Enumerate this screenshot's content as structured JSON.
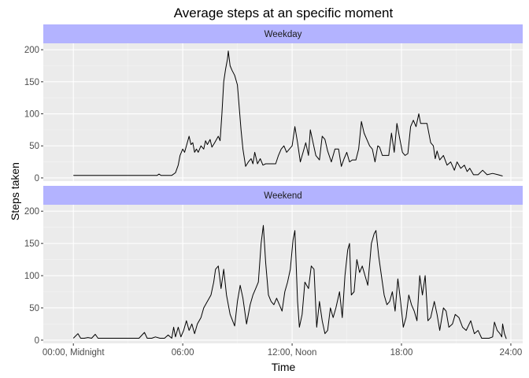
{
  "chart_data": {
    "type": "line",
    "title": "Average steps at an specific moment",
    "xlabel": "Time",
    "ylabel": "Steps taken",
    "x_unit": "hours",
    "xlim": [
      -1.65,
      24.65
    ],
    "x_ticks": [
      {
        "value": 0,
        "label": "00:00, Midnight"
      },
      {
        "value": 6,
        "label": "06:00"
      },
      {
        "value": 12,
        "label": "12:00, Noon"
      },
      {
        "value": 18,
        "label": "18:00"
      },
      {
        "value": 24,
        "label": "24:00"
      }
    ],
    "ylim": [
      -5,
      210
    ],
    "y_ticks": [
      0,
      50,
      100,
      150,
      200
    ],
    "grid": true,
    "panel_background": "#ebebeb",
    "strip_color": "#b3b3ff",
    "line_color": "#000000",
    "panels": [
      {
        "name": "Weekday",
        "points": [
          [
            0,
            4
          ],
          [
            1,
            4
          ],
          [
            2,
            4
          ],
          [
            3,
            4
          ],
          [
            3.6,
            4
          ],
          [
            4.2,
            4
          ],
          [
            4.6,
            4
          ],
          [
            4.7,
            6
          ],
          [
            4.8,
            4
          ],
          [
            5,
            4
          ],
          [
            5.4,
            4
          ],
          [
            5.6,
            8
          ],
          [
            5.75,
            20
          ],
          [
            5.85,
            35
          ],
          [
            6.0,
            45
          ],
          [
            6.1,
            40
          ],
          [
            6.25,
            55
          ],
          [
            6.35,
            65
          ],
          [
            6.45,
            52
          ],
          [
            6.55,
            55
          ],
          [
            6.65,
            40
          ],
          [
            6.75,
            45
          ],
          [
            6.85,
            40
          ],
          [
            7.0,
            50
          ],
          [
            7.15,
            45
          ],
          [
            7.25,
            58
          ],
          [
            7.35,
            52
          ],
          [
            7.5,
            60
          ],
          [
            7.6,
            48
          ],
          [
            7.75,
            55
          ],
          [
            7.85,
            60
          ],
          [
            7.95,
            65
          ],
          [
            8.05,
            58
          ],
          [
            8.15,
            100
          ],
          [
            8.25,
            150
          ],
          [
            8.35,
            170
          ],
          [
            8.45,
            185
          ],
          [
            8.5,
            198
          ],
          [
            8.6,
            175
          ],
          [
            8.7,
            168
          ],
          [
            8.85,
            160
          ],
          [
            9.0,
            145
          ],
          [
            9.1,
            110
          ],
          [
            9.2,
            75
          ],
          [
            9.3,
            45
          ],
          [
            9.45,
            18
          ],
          [
            9.6,
            25
          ],
          [
            9.75,
            30
          ],
          [
            9.85,
            22
          ],
          [
            9.95,
            40
          ],
          [
            10.1,
            22
          ],
          [
            10.25,
            30
          ],
          [
            10.4,
            20
          ],
          [
            10.55,
            22
          ],
          [
            10.8,
            22
          ],
          [
            11.1,
            22
          ],
          [
            11.25,
            35
          ],
          [
            11.4,
            45
          ],
          [
            11.55,
            50
          ],
          [
            11.7,
            40
          ],
          [
            11.85,
            45
          ],
          [
            12.0,
            50
          ],
          [
            12.15,
            80
          ],
          [
            12.3,
            55
          ],
          [
            12.45,
            25
          ],
          [
            12.6,
            40
          ],
          [
            12.75,
            55
          ],
          [
            12.9,
            35
          ],
          [
            13.0,
            75
          ],
          [
            13.15,
            55
          ],
          [
            13.3,
            35
          ],
          [
            13.5,
            28
          ],
          [
            13.65,
            65
          ],
          [
            13.8,
            60
          ],
          [
            13.95,
            42
          ],
          [
            14.15,
            25
          ],
          [
            14.35,
            45
          ],
          [
            14.55,
            45
          ],
          [
            14.7,
            18
          ],
          [
            14.85,
            30
          ],
          [
            15.0,
            40
          ],
          [
            15.15,
            25
          ],
          [
            15.3,
            28
          ],
          [
            15.5,
            28
          ],
          [
            15.65,
            45
          ],
          [
            15.8,
            88
          ],
          [
            15.95,
            70
          ],
          [
            16.1,
            60
          ],
          [
            16.25,
            50
          ],
          [
            16.4,
            45
          ],
          [
            16.55,
            25
          ],
          [
            16.7,
            50
          ],
          [
            16.8,
            48
          ],
          [
            16.95,
            35
          ],
          [
            17.1,
            35
          ],
          [
            17.3,
            35
          ],
          [
            17.45,
            70
          ],
          [
            17.6,
            40
          ],
          [
            17.75,
            85
          ],
          [
            17.9,
            62
          ],
          [
            18.05,
            40
          ],
          [
            18.2,
            35
          ],
          [
            18.35,
            38
          ],
          [
            18.5,
            80
          ],
          [
            18.65,
            90
          ],
          [
            18.8,
            80
          ],
          [
            18.95,
            100
          ],
          [
            19.05,
            85
          ],
          [
            19.2,
            85
          ],
          [
            19.4,
            85
          ],
          [
            19.6,
            55
          ],
          [
            19.75,
            50
          ],
          [
            19.85,
            30
          ],
          [
            19.95,
            42
          ],
          [
            20.1,
            28
          ],
          [
            20.3,
            35
          ],
          [
            20.5,
            20
          ],
          [
            20.7,
            25
          ],
          [
            20.9,
            12
          ],
          [
            21.05,
            25
          ],
          [
            21.25,
            15
          ],
          [
            21.45,
            20
          ],
          [
            21.6,
            10
          ],
          [
            21.75,
            15
          ],
          [
            21.95,
            5
          ],
          [
            22.2,
            5
          ],
          [
            22.45,
            12
          ],
          [
            22.7,
            5
          ],
          [
            23.0,
            7
          ],
          [
            23.3,
            5
          ],
          [
            23.55,
            3
          ]
        ]
      },
      {
        "name": "Weekend",
        "points": [
          [
            0,
            3
          ],
          [
            0.25,
            10
          ],
          [
            0.4,
            3
          ],
          [
            0.6,
            3
          ],
          [
            0.8,
            4
          ],
          [
            1.0,
            3
          ],
          [
            1.2,
            9
          ],
          [
            1.35,
            3
          ],
          [
            1.7,
            3
          ],
          [
            2.2,
            3
          ],
          [
            2.7,
            3
          ],
          [
            3.2,
            3
          ],
          [
            3.6,
            3
          ],
          [
            3.9,
            12
          ],
          [
            4.05,
            3
          ],
          [
            4.3,
            3
          ],
          [
            4.5,
            5
          ],
          [
            4.75,
            3
          ],
          [
            5.0,
            3
          ],
          [
            5.2,
            8
          ],
          [
            5.4,
            3
          ],
          [
            5.5,
            20
          ],
          [
            5.6,
            5
          ],
          [
            5.75,
            20
          ],
          [
            5.9,
            5
          ],
          [
            6.05,
            15
          ],
          [
            6.2,
            30
          ],
          [
            6.35,
            15
          ],
          [
            6.5,
            25
          ],
          [
            6.65,
            10
          ],
          [
            6.8,
            25
          ],
          [
            7.0,
            35
          ],
          [
            7.15,
            50
          ],
          [
            7.35,
            60
          ],
          [
            7.55,
            70
          ],
          [
            7.7,
            90
          ],
          [
            7.8,
            110
          ],
          [
            7.95,
            115
          ],
          [
            8.1,
            80
          ],
          [
            8.25,
            110
          ],
          [
            8.4,
            70
          ],
          [
            8.6,
            40
          ],
          [
            8.85,
            22
          ],
          [
            9.0,
            60
          ],
          [
            9.15,
            85
          ],
          [
            9.3,
            65
          ],
          [
            9.5,
            25
          ],
          [
            9.7,
            55
          ],
          [
            9.85,
            70
          ],
          [
            10.0,
            80
          ],
          [
            10.15,
            90
          ],
          [
            10.3,
            150
          ],
          [
            10.42,
            178
          ],
          [
            10.55,
            120
          ],
          [
            10.7,
            70
          ],
          [
            10.85,
            60
          ],
          [
            11.0,
            55
          ],
          [
            11.15,
            65
          ],
          [
            11.3,
            55
          ],
          [
            11.45,
            45
          ],
          [
            11.6,
            75
          ],
          [
            11.75,
            90
          ],
          [
            11.9,
            110
          ],
          [
            12.05,
            155
          ],
          [
            12.15,
            170
          ],
          [
            12.3,
            60
          ],
          [
            12.4,
            20
          ],
          [
            12.55,
            40
          ],
          [
            12.7,
            90
          ],
          [
            12.9,
            80
          ],
          [
            13.05,
            115
          ],
          [
            13.2,
            110
          ],
          [
            13.35,
            20
          ],
          [
            13.5,
            60
          ],
          [
            13.65,
            30
          ],
          [
            13.8,
            10
          ],
          [
            13.95,
            15
          ],
          [
            14.1,
            50
          ],
          [
            14.25,
            35
          ],
          [
            14.4,
            50
          ],
          [
            14.6,
            75
          ],
          [
            14.75,
            35
          ],
          [
            14.9,
            100
          ],
          [
            15.05,
            140
          ],
          [
            15.15,
            150
          ],
          [
            15.25,
            70
          ],
          [
            15.4,
            75
          ],
          [
            15.55,
            125
          ],
          [
            15.7,
            105
          ],
          [
            15.85,
            115
          ],
          [
            16.0,
            100
          ],
          [
            16.15,
            85
          ],
          [
            16.35,
            150
          ],
          [
            16.5,
            165
          ],
          [
            16.6,
            170
          ],
          [
            16.75,
            130
          ],
          [
            16.9,
            100
          ],
          [
            17.05,
            70
          ],
          [
            17.2,
            55
          ],
          [
            17.35,
            60
          ],
          [
            17.5,
            75
          ],
          [
            17.65,
            45
          ],
          [
            17.8,
            95
          ],
          [
            17.95,
            60
          ],
          [
            18.1,
            20
          ],
          [
            18.25,
            35
          ],
          [
            18.4,
            70
          ],
          [
            18.55,
            55
          ],
          [
            18.7,
            45
          ],
          [
            18.85,
            30
          ],
          [
            19.0,
            100
          ],
          [
            19.15,
            70
          ],
          [
            19.3,
            100
          ],
          [
            19.45,
            30
          ],
          [
            19.6,
            35
          ],
          [
            19.8,
            60
          ],
          [
            19.95,
            40
          ],
          [
            20.1,
            15
          ],
          [
            20.3,
            50
          ],
          [
            20.45,
            45
          ],
          [
            20.6,
            20
          ],
          [
            20.8,
            25
          ],
          [
            20.95,
            40
          ],
          [
            21.15,
            35
          ],
          [
            21.35,
            20
          ],
          [
            21.55,
            15
          ],
          [
            21.8,
            30
          ],
          [
            22.0,
            10
          ],
          [
            22.2,
            15
          ],
          [
            22.4,
            3
          ],
          [
            22.6,
            3
          ],
          [
            22.8,
            3
          ],
          [
            23.0,
            5
          ],
          [
            23.1,
            28
          ],
          [
            23.25,
            15
          ],
          [
            23.4,
            10
          ],
          [
            23.5,
            5
          ],
          [
            23.55,
            25
          ],
          [
            23.65,
            10
          ],
          [
            23.75,
            2
          ]
        ]
      }
    ]
  }
}
